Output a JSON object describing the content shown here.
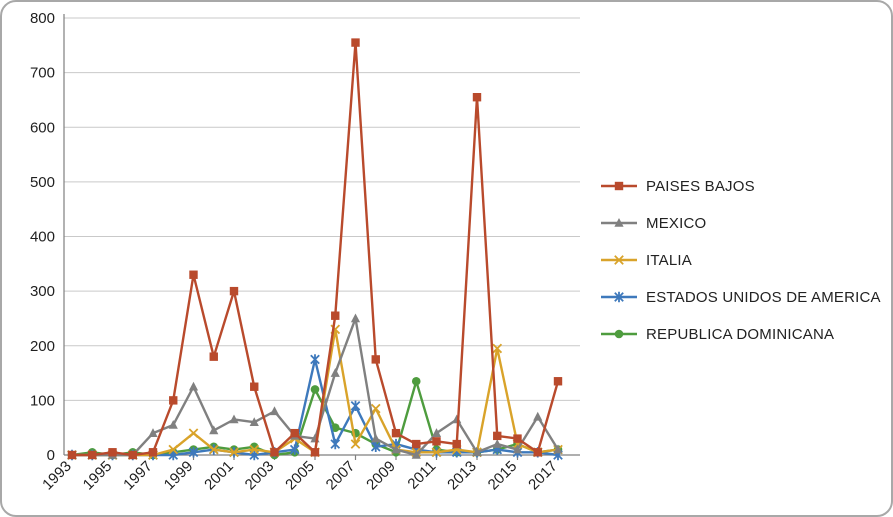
{
  "chart_data": {
    "type": "line",
    "title": "",
    "xlabel": "",
    "ylabel": "",
    "ylim": [
      0,
      800
    ],
    "yticks": [
      0,
      100,
      200,
      300,
      400,
      500,
      600,
      700,
      800
    ],
    "grid": true,
    "legend_position": "right",
    "x": [
      1993,
      1994,
      1995,
      1996,
      1997,
      1998,
      1999,
      2000,
      2001,
      2002,
      2003,
      2004,
      2005,
      2006,
      2007,
      2008,
      2009,
      2010,
      2011,
      2012,
      2013,
      2014,
      2015,
      2016,
      2017
    ],
    "xticks_shown": [
      "1993",
      "1995",
      "1997",
      "1999",
      "2001",
      "2003",
      "2005",
      "2007",
      "2009",
      "2011",
      "2013",
      "2015",
      "2017"
    ],
    "series": [
      {
        "name": "PAISES BAJOS",
        "color": "#b94a2c",
        "marker": "square",
        "values": [
          0,
          0,
          5,
          0,
          5,
          100,
          330,
          180,
          300,
          125,
          5,
          40,
          5,
          255,
          755,
          175,
          40,
          20,
          25,
          20,
          655,
          35,
          30,
          5,
          135
        ]
      },
      {
        "name": "MEXICO",
        "color": "#808080",
        "marker": "triangle",
        "values": [
          0,
          0,
          0,
          0,
          40,
          55,
          125,
          45,
          65,
          60,
          80,
          35,
          30,
          150,
          250,
          30,
          10,
          0,
          40,
          65,
          5,
          20,
          10,
          70,
          10
        ]
      },
      {
        "name": "ITALIA",
        "color": "#d9a32a",
        "marker": "x",
        "values": [
          0,
          0,
          0,
          0,
          0,
          10,
          40,
          10,
          5,
          10,
          5,
          30,
          5,
          230,
          20,
          85,
          10,
          5,
          5,
          10,
          5,
          195,
          20,
          5,
          10
        ]
      },
      {
        "name": "ESTADOS UNIDOS DE AMERICA",
        "color": "#3e79bc",
        "marker": "star",
        "values": [
          0,
          0,
          0,
          0,
          0,
          0,
          5,
          10,
          5,
          0,
          5,
          10,
          175,
          20,
          90,
          15,
          20,
          10,
          5,
          5,
          5,
          10,
          5,
          5,
          0
        ]
      },
      {
        "name": "REPUBLICA DOMINICANA",
        "color": "#4e9c3e",
        "marker": "circle",
        "values": [
          0,
          5,
          0,
          5,
          0,
          5,
          10,
          15,
          10,
          15,
          0,
          5,
          120,
          50,
          40,
          20,
          5,
          135,
          10,
          5,
          5,
          10,
          20,
          5,
          10
        ]
      }
    ]
  }
}
